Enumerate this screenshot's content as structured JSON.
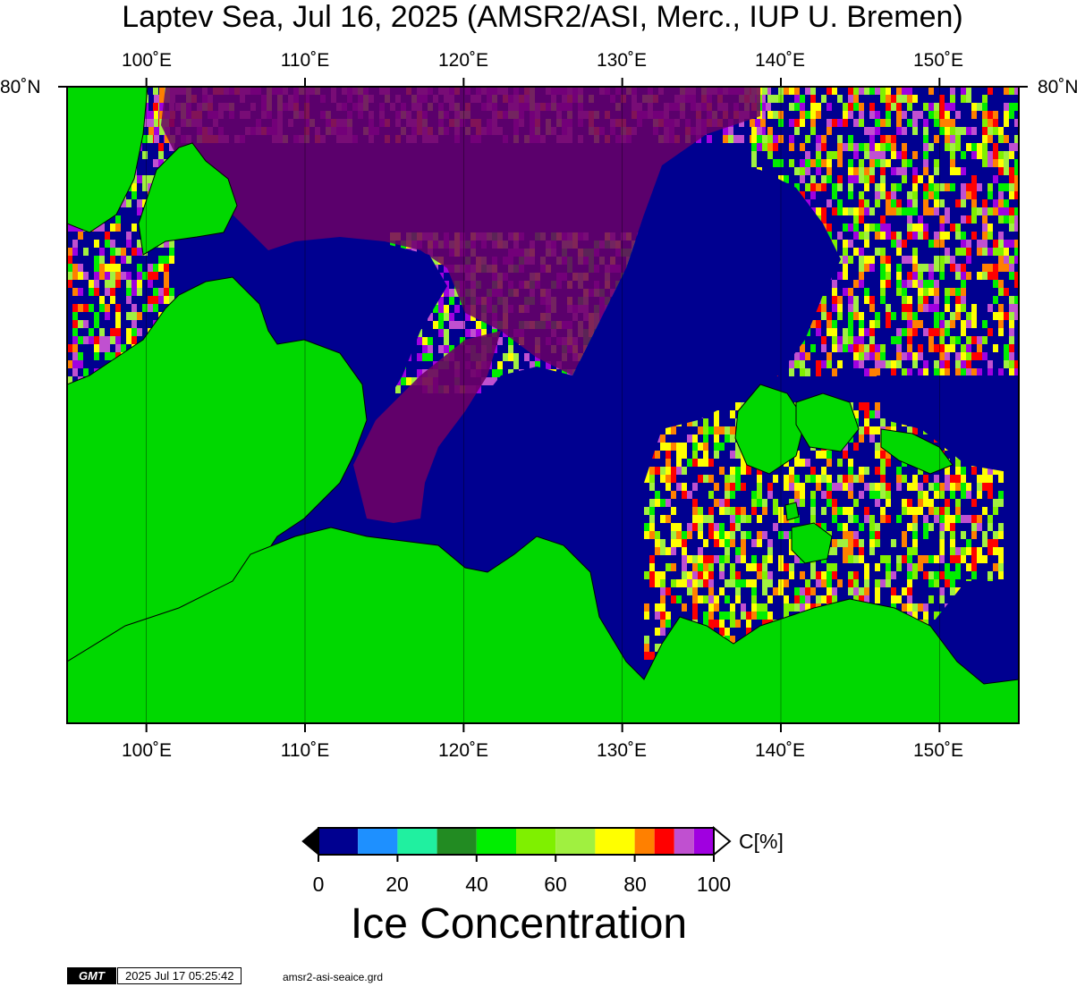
{
  "title": "Laptev Sea, Jul 16, 2025 (AMSR2/ASI, Merc., IUP U. Bremen)",
  "map": {
    "lon_ticks": [
      "100˚E",
      "110˚E",
      "120˚E",
      "130˚E",
      "140˚E",
      "150˚E"
    ],
    "lon_values": [
      100,
      110,
      120,
      130,
      140,
      150
    ],
    "lon_range": [
      95,
      155
    ],
    "lat_label_left": "80˚N",
    "lat_label_right": "80˚N",
    "land_color": "#00d800",
    "open_water_color": "#000090",
    "high_ice_color": "#6b0066"
  },
  "colorbar": {
    "ticks": [
      "0",
      "20",
      "40",
      "60",
      "80",
      "100"
    ],
    "unit": "C[%]",
    "label": "Ice Concentration",
    "colors": [
      "#000090",
      "#1e90ff",
      "#20f0a0",
      "#228b22",
      "#00ee00",
      "#7ff000",
      "#a0f040",
      "#ffff00",
      "#ff8000",
      "#ff0000",
      "#c050d0",
      "#a000e0"
    ],
    "stops": [
      0,
      10,
      20,
      30,
      40,
      50,
      60,
      70,
      80,
      85,
      90,
      95,
      100
    ]
  },
  "footer": {
    "logo": "GMT",
    "timestamp": "2025 Jul 17 05:25:42",
    "filename": "amsr2-asi-seaice.grd"
  }
}
